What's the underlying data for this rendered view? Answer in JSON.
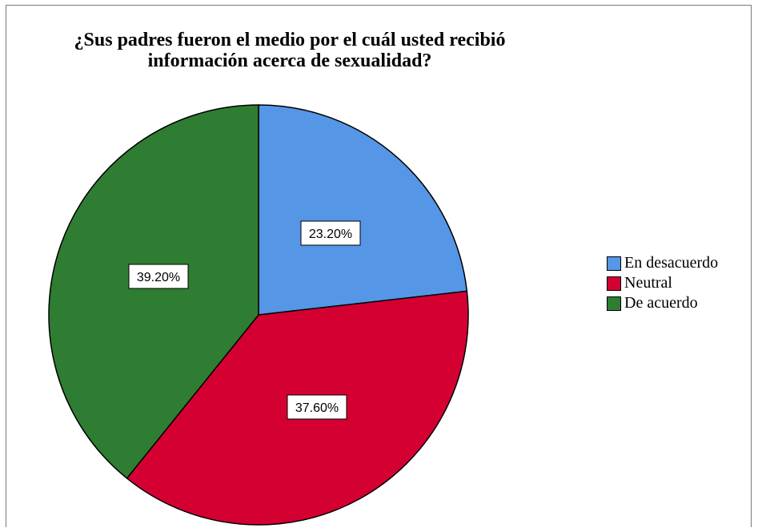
{
  "chart_data": {
    "type": "pie",
    "title_line1": "¿Sus padres fueron el medio por el cuál usted recibió",
    "title_line2": "información acerca de sexualidad?",
    "slices": [
      {
        "label": "En desacuerdo",
        "value": 23.2,
        "display": "23.20%",
        "color": "#5596e6"
      },
      {
        "label": "Neutral",
        "value": 37.6,
        "display": "37.60%",
        "color": "#d50032"
      },
      {
        "label": "De acuerdo",
        "value": 39.2,
        "display": "39.20%",
        "color": "#2e7d32"
      }
    ],
    "legend_placement": "right",
    "start": "12 o'clock",
    "direction": "clockwise"
  }
}
